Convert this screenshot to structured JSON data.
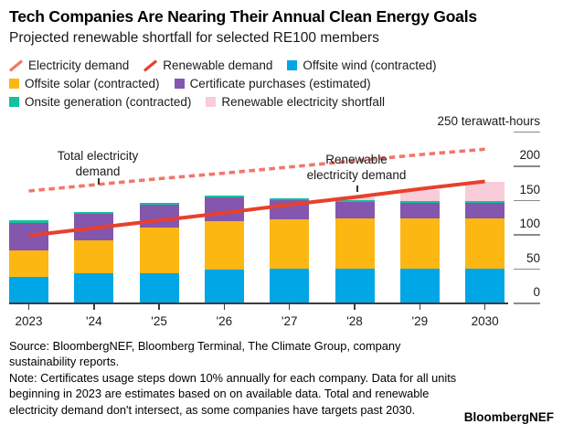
{
  "header": {
    "title": "Tech Companies Are Nearing Their Annual Clean Energy Goals",
    "subtitle": "Projected renewable shortfall for selected RE100 members"
  },
  "legend": {
    "rows": [
      [
        {
          "icon": "dashed-line-swatch",
          "type": "line",
          "color": "#f3766c",
          "label": "Electricity demand"
        },
        {
          "icon": "solid-line-swatch",
          "type": "line",
          "color": "#e8402c",
          "label": "Renewable demand"
        },
        {
          "icon": "square-swatch",
          "type": "square",
          "color": "#00a6e6",
          "label": "Offsite wind (contracted)"
        }
      ],
      [
        {
          "icon": "square-swatch",
          "type": "square",
          "color": "#fdb713",
          "label": "Offsite solar (contracted)"
        },
        {
          "icon": "square-swatch",
          "type": "square",
          "color": "#8456ae",
          "label": "Certificate purchases (estimated)"
        }
      ],
      [
        {
          "icon": "square-swatch",
          "type": "square",
          "color": "#12c19e",
          "label": "Onsite generation (contracted)"
        },
        {
          "icon": "square-swatch",
          "type": "square",
          "color": "#f8ccd8",
          "label": "Renewable electricity shortfall"
        }
      ]
    ]
  },
  "chart_data": {
    "type": "bar",
    "subtype": "stacked-bars-with-trend-lines",
    "title": "Projected renewable shortfall for selected RE100 members",
    "categories": [
      "2023",
      "'24",
      "'25",
      "'26",
      "'27",
      "'28",
      "'29",
      "2030"
    ],
    "series": [
      {
        "name": "Offsite wind (contracted)",
        "color": "#00a6e6",
        "values": [
          39,
          44,
          44,
          49,
          51,
          51,
          51,
          51
        ]
      },
      {
        "name": "Offsite solar (contracted)",
        "color": "#fdb713",
        "values": [
          39,
          48,
          67,
          71,
          72,
          73,
          73,
          73
        ]
      },
      {
        "name": "Certificate purchases (estimated)",
        "color": "#8456ae",
        "values": [
          40,
          39,
          33,
          35,
          28,
          24,
          23,
          23
        ]
      },
      {
        "name": "Onsite generation (contracted)",
        "color": "#12c19e",
        "values": [
          4,
          3,
          3,
          3,
          3,
          3,
          3,
          3
        ]
      },
      {
        "name": "Renewable electricity shortfall",
        "color": "#f8ccd8",
        "values": [
          0,
          0,
          0,
          0,
          0,
          4,
          15,
          28
        ]
      }
    ],
    "lines": [
      {
        "name": "Electricity demand",
        "style": "dashed",
        "color": "#f3766c",
        "values": [
          164,
          173,
          182,
          190,
          199,
          208,
          217,
          225
        ]
      },
      {
        "name": "Renewable demand",
        "style": "solid",
        "color": "#e8402c",
        "values": [
          99,
          110,
          121,
          132,
          144,
          155,
          167,
          178
        ]
      }
    ],
    "y_axis": {
      "unit": "terawatt-hours",
      "ylim": [
        0,
        250
      ],
      "side": "right",
      "grid": false,
      "ticks": [
        {
          "value": 250,
          "label": "250 terawatt-hours"
        },
        {
          "value": 200,
          "label": "200"
        },
        {
          "value": 150,
          "label": "150"
        },
        {
          "value": 100,
          "label": "100"
        },
        {
          "value": 50,
          "label": "50"
        },
        {
          "value": 0,
          "label": "0"
        }
      ]
    },
    "annotations": [
      {
        "lines": [
          "Total electricity",
          "demand"
        ],
        "target": "Electricity demand",
        "cx": 107,
        "top": 38,
        "pointer_top": 71,
        "pointer_height": 7
      },
      {
        "lines": [
          "Renewable",
          "electricity demand"
        ],
        "target": "Renewable demand",
        "cx": 390,
        "top": 42,
        "pointer_top": 79,
        "pointer_height": 7
      }
    ],
    "legend_position": "top"
  },
  "footer": {
    "source": "Source: BloombergNEF, Bloomberg Terminal, The Climate Group, company sustainability reports.",
    "note": "Note: Certificates usage steps down 10% annually for each company. Data for all units beginning in 2023 are estimates based on on available data. Total and renewable electricity demand don't intersect, as some companies have targets past 2030.",
    "brand": "BloombergNEF"
  }
}
